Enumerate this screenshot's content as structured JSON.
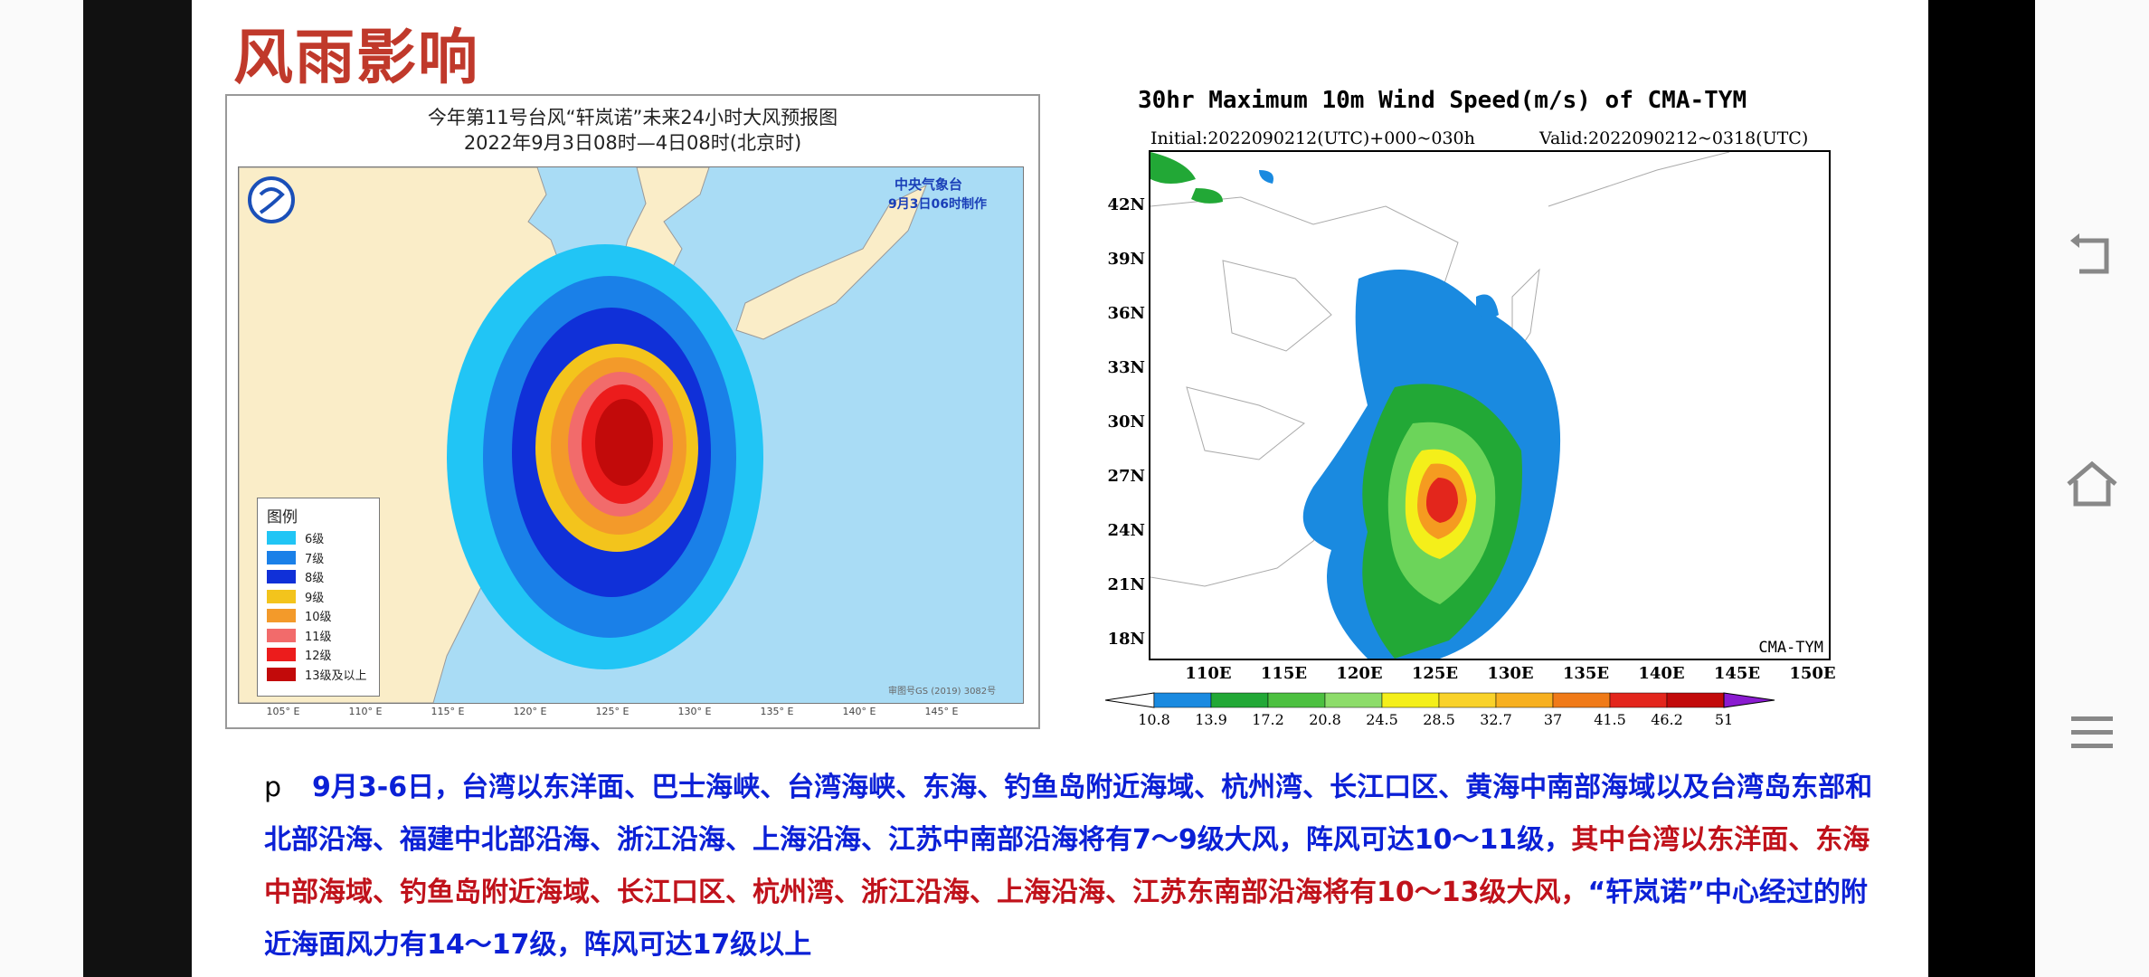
{
  "slide": {
    "title": "风雨影响",
    "map1": {
      "title_line1": "今年第11号台风“轩岚诺”未来24小时大风预报图",
      "title_line2": "2022年9月3日08时—4日08时(北京时)",
      "agency": "中央气象台",
      "made_time": "9月3日06时制作",
      "legend_title": "图例",
      "legend": [
        {
          "label": "6级",
          "color": "#21c5f5"
        },
        {
          "label": "7级",
          "color": "#1a80e8"
        },
        {
          "label": "8级",
          "color": "#1030d8"
        },
        {
          "label": "9级",
          "color": "#f3c41c"
        },
        {
          "label": "10级",
          "color": "#f39a2a"
        },
        {
          "label": "11级",
          "color": "#f26b6b"
        },
        {
          "label": "12级",
          "color": "#ec1c1c"
        },
        {
          "label": "13级及以上",
          "color": "#c20a0a"
        }
      ],
      "map_no": "审图号GS (2019) 3082号",
      "lon_ticks": [
        "105° E",
        "110° E",
        "115° E",
        "120° E",
        "125° E",
        "130° E",
        "135° E",
        "140° E",
        "145° E"
      ]
    },
    "map2": {
      "title": "30hr Maximum 10m Wind Speed(m/s) of CMA-TYM",
      "initial": "Initial:2022090212(UTC)+000~030h",
      "valid": "Valid:2022090212~0318(UTC)",
      "model": "CMA-TYM",
      "lat_ticks": [
        "42N",
        "39N",
        "36N",
        "33N",
        "30N",
        "27N",
        "24N",
        "21N",
        "18N"
      ],
      "lon_ticks": [
        "110E",
        "115E",
        "120E",
        "125E",
        "130E",
        "135E",
        "140E",
        "145E",
        "150E"
      ],
      "colorbar": [
        "10.8",
        "13.9",
        "17.2",
        "20.8",
        "24.5",
        "28.5",
        "32.7",
        "37",
        "41.5",
        "46.2",
        "51"
      ]
    },
    "bullet_marker": "p",
    "paragraph_blue1": "9月3-6日，台湾以东洋面、巴士海峡、台湾海峡、东海、钓鱼岛附近海域、杭州湾、长江口区、黄海中南部海域以及台湾岛东部和北部沿海、福建中北部沿海、浙江沿海、上海沿海、江苏中南部沿海将有7～9级大风，阵风可达10～11级，",
    "paragraph_red": "其中台湾以东洋面、东海中部海域、钓鱼岛附近海域、长江口区、杭州湾、浙江沿海、上海沿海、江苏东南部沿海将有10～13级大风，",
    "paragraph_blue2": "“轩岚诺”中心经过的附近海面风力有14～17级，阵风可达17级以上"
  },
  "nav": {
    "back_icon": "back-icon",
    "home_icon": "home-icon",
    "menu_icon": "menu-icon"
  }
}
